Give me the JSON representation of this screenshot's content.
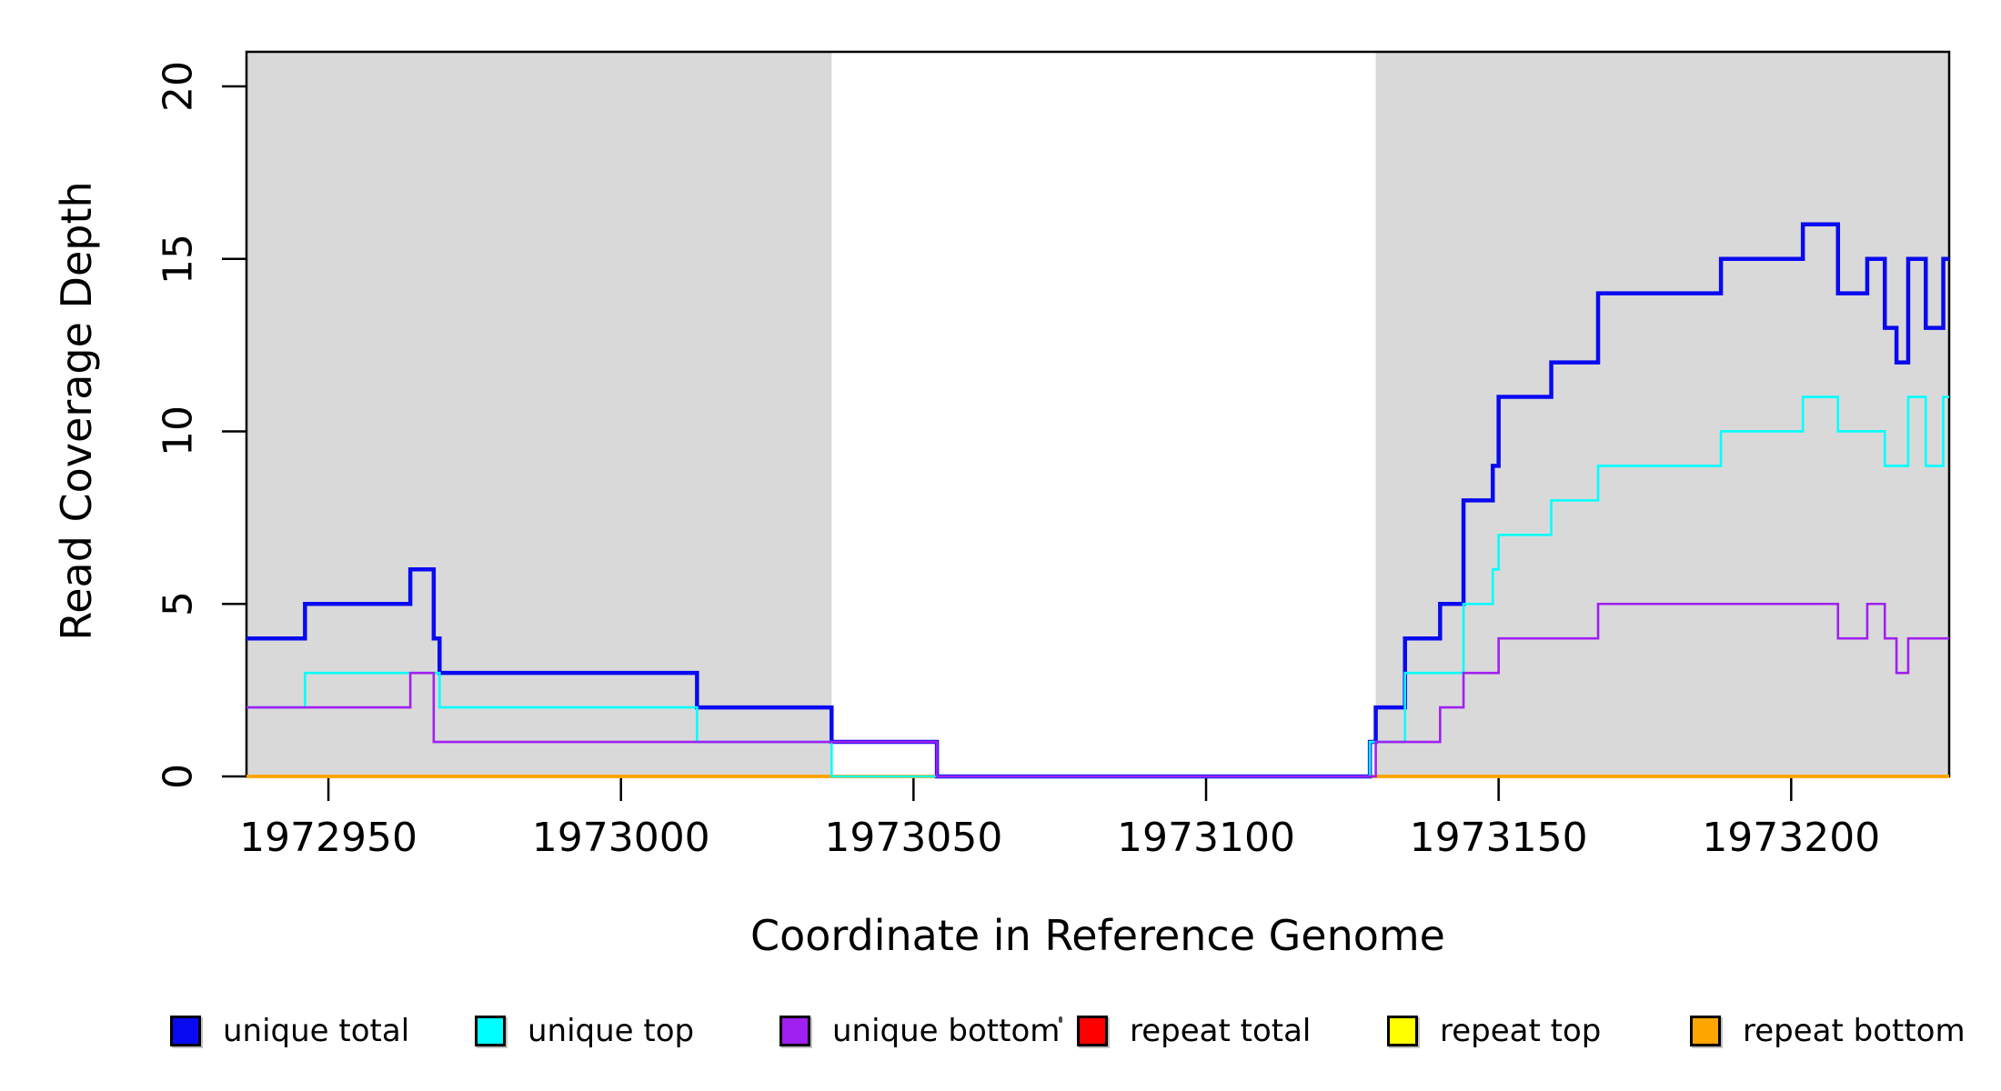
{
  "chart_data": {
    "type": "line",
    "subtype": "step-post-coverage",
    "title": "",
    "xlabel": "Coordinate in Reference Genome",
    "ylabel": "Read Coverage Depth",
    "xlim": [
      1972936,
      1973227
    ],
    "ylim": [
      0,
      21
    ],
    "x_ticks": [
      1972950,
      1973000,
      1973050,
      1973100,
      1973150,
      1973200
    ],
    "y_ticks": [
      0,
      5,
      10,
      15,
      20
    ],
    "grid": false,
    "plot_background": "#ffffff",
    "box_color": "#000000",
    "shaded_regions": [
      {
        "from": 1972936,
        "to": 1973036,
        "color": "#d9d9d9"
      },
      {
        "from": 1973129,
        "to": 1973227,
        "color": "#d9d9d9"
      }
    ],
    "draw_order": [
      "repeat total",
      "repeat top",
      "repeat bottom",
      "unique total",
      "unique top",
      "unique bottom"
    ],
    "series": [
      {
        "name": "unique total",
        "color": "#0a0af0",
        "width": 4.5,
        "steps": [
          [
            1972936,
            4
          ],
          [
            1972946,
            5
          ],
          [
            1972964,
            6
          ],
          [
            1972968,
            4
          ],
          [
            1972969,
            3
          ],
          [
            1973013,
            2
          ],
          [
            1973036,
            1
          ],
          [
            1973054,
            0
          ],
          [
            1973128,
            1
          ],
          [
            1973129,
            2
          ],
          [
            1973134,
            4
          ],
          [
            1973140,
            5
          ],
          [
            1973144,
            8
          ],
          [
            1973149,
            9
          ],
          [
            1973150,
            11
          ],
          [
            1973159,
            12
          ],
          [
            1973167,
            14
          ],
          [
            1973188,
            15
          ],
          [
            1973202,
            16
          ],
          [
            1973208,
            14
          ],
          [
            1973213,
            15
          ],
          [
            1973216,
            13
          ],
          [
            1973218,
            12
          ],
          [
            1973220,
            15
          ],
          [
            1973223,
            13
          ],
          [
            1973226,
            15
          ]
        ]
      },
      {
        "name": "unique top",
        "color": "#00ffff",
        "width": 2.6,
        "steps": [
          [
            1972936,
            2
          ],
          [
            1972946,
            3
          ],
          [
            1972969,
            2
          ],
          [
            1973013,
            1
          ],
          [
            1973036,
            0
          ],
          [
            1973128,
            1
          ],
          [
            1973134,
            3
          ],
          [
            1973144,
            5
          ],
          [
            1973149,
            6
          ],
          [
            1973150,
            7
          ],
          [
            1973159,
            8
          ],
          [
            1973167,
            9
          ],
          [
            1973188,
            10
          ],
          [
            1973202,
            11
          ],
          [
            1973208,
            10
          ],
          [
            1973216,
            9
          ],
          [
            1973220,
            11
          ],
          [
            1973223,
            9
          ],
          [
            1973226,
            11
          ]
        ]
      },
      {
        "name": "unique bottom",
        "color": "#a020f0",
        "width": 2.6,
        "steps": [
          [
            1972936,
            2
          ],
          [
            1972964,
            3
          ],
          [
            1972968,
            1
          ],
          [
            1973054,
            0
          ],
          [
            1973129,
            1
          ],
          [
            1973140,
            2
          ],
          [
            1973144,
            3
          ],
          [
            1973150,
            4
          ],
          [
            1973167,
            5
          ],
          [
            1973208,
            4
          ],
          [
            1973213,
            5
          ],
          [
            1973216,
            4
          ],
          [
            1973218,
            3
          ],
          [
            1973220,
            4
          ]
        ]
      },
      {
        "name": "repeat total",
        "color": "#ff0000",
        "width": 3.6,
        "steps": [
          [
            1972936,
            0
          ]
        ]
      },
      {
        "name": "repeat top",
        "color": "#ffff00",
        "width": 3.6,
        "steps": [
          [
            1972936,
            0
          ]
        ]
      },
      {
        "name": "repeat bottom",
        "color": "#ffa500",
        "width": 3.6,
        "steps": [
          [
            1972936,
            0
          ]
        ]
      }
    ],
    "legend": {
      "position": "bottom",
      "items": [
        {
          "label": "unique total",
          "color": "#0a0af0"
        },
        {
          "label": "unique top",
          "color": "#00ffff"
        },
        {
          "label": "unique bottom",
          "color": "#a020f0"
        },
        {
          "label": "repeat total",
          "color": "#ff0000"
        },
        {
          "label": "repeat top",
          "color": "#ffff00"
        },
        {
          "label": "repeat bottom",
          "color": "#ffa500"
        }
      ]
    }
  }
}
